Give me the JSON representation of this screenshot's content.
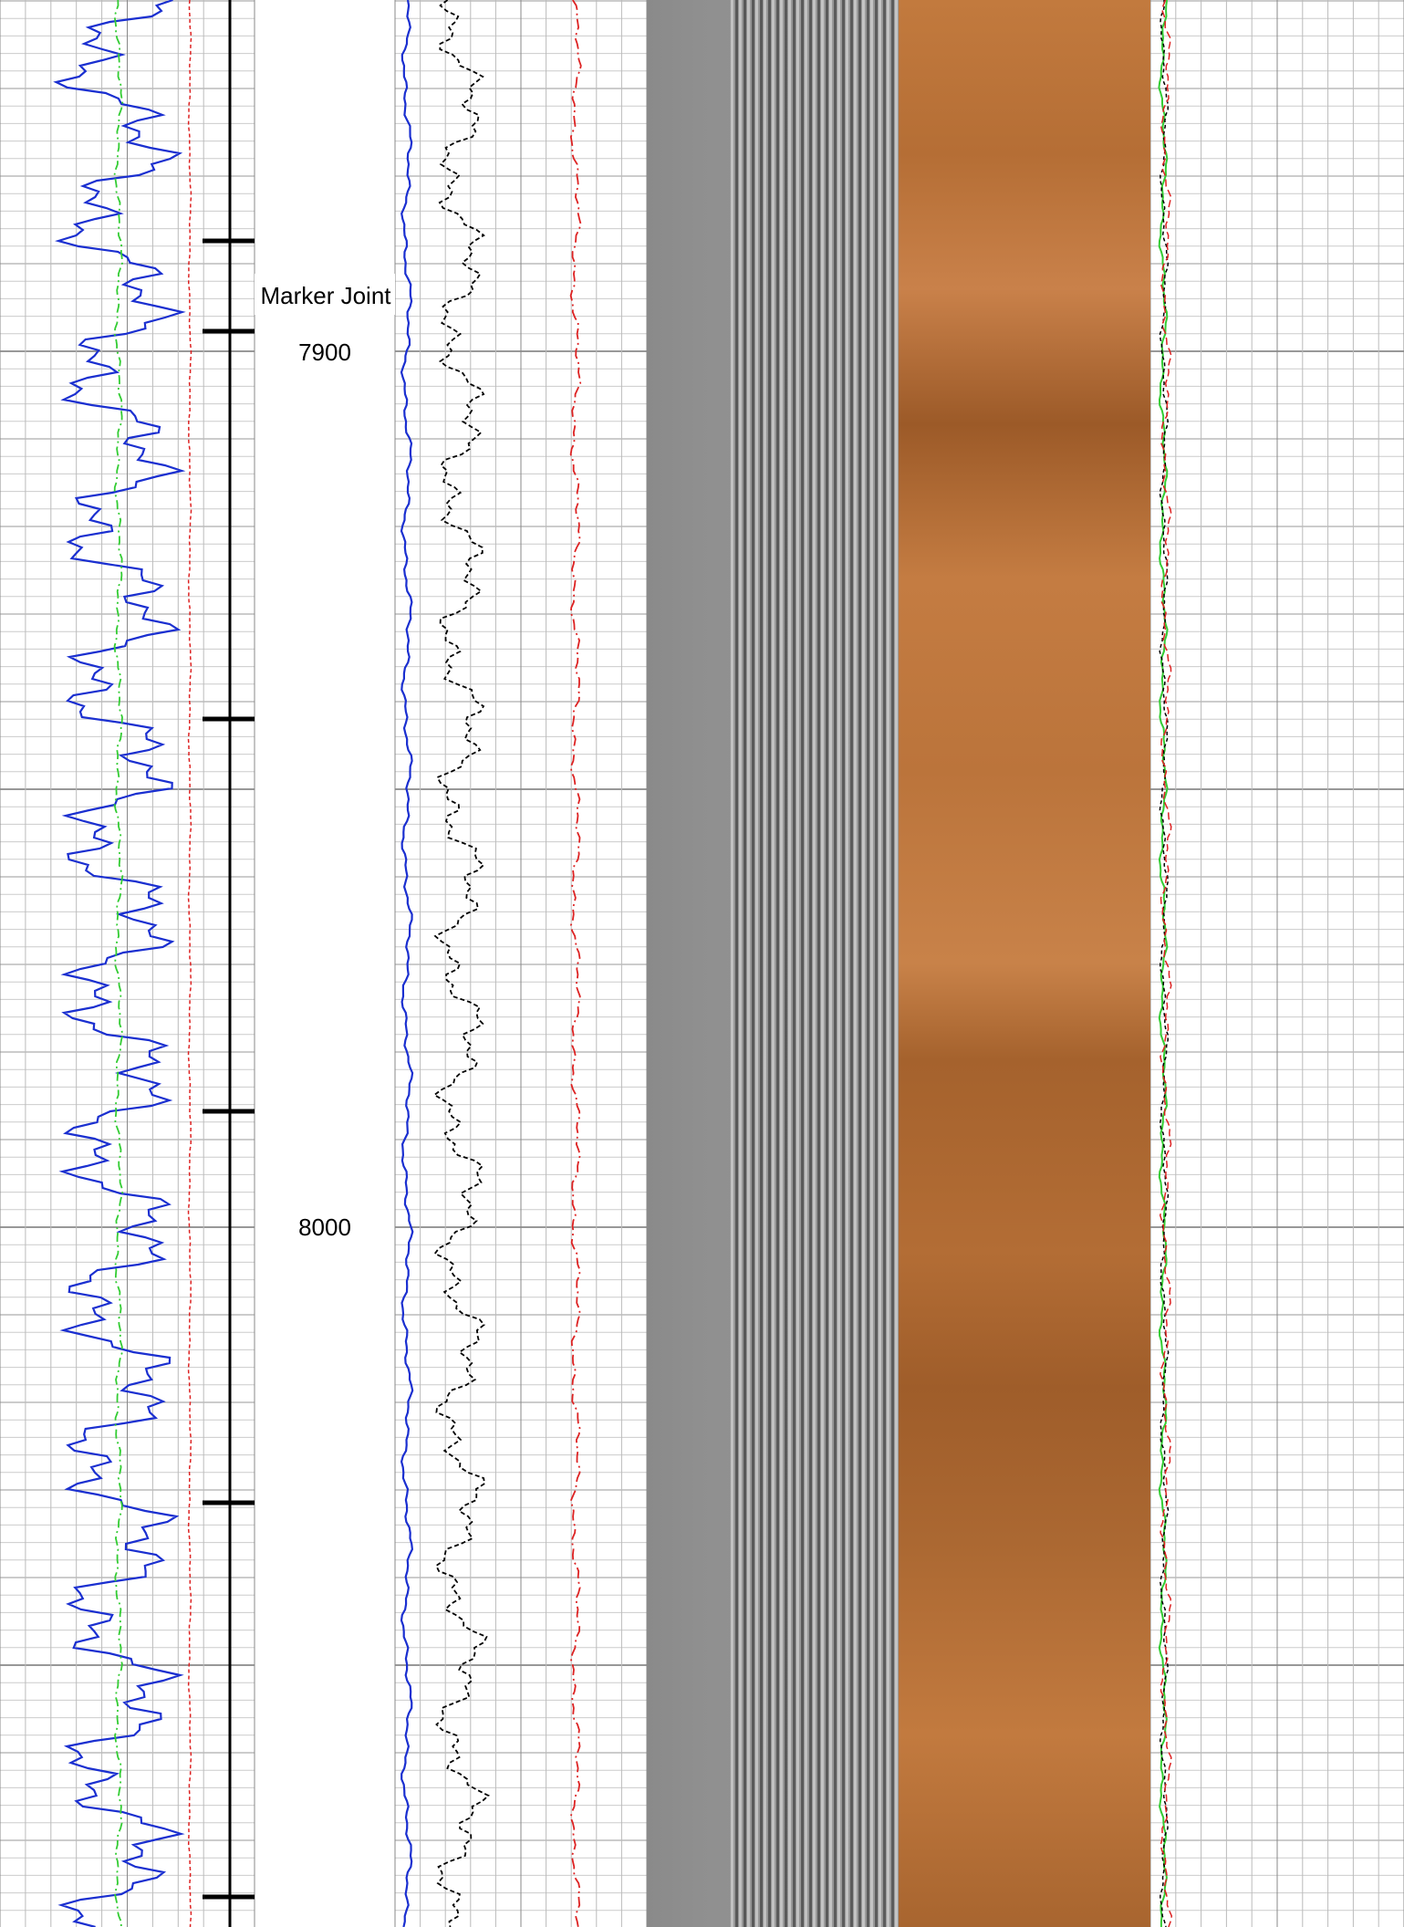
{
  "depth_track": {
    "marker": "Marker Joint",
    "depth_labels": [
      "7900",
      "8000"
    ]
  }
}
